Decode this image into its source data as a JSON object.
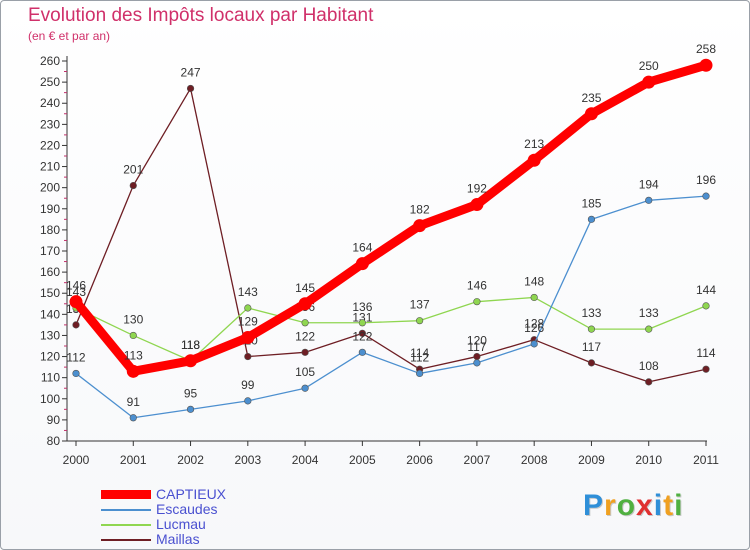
{
  "chart_data": {
    "type": "line",
    "title": "Evolution des Impôts locaux par Habitant",
    "subtitle": "(en € et par an)",
    "x": [
      "2000",
      "2001",
      "2002",
      "2003",
      "2004",
      "2005",
      "2006",
      "2007",
      "2008",
      "2009",
      "2010",
      "2011"
    ],
    "ylim": [
      80,
      260
    ],
    "yticks": [
      80,
      90,
      100,
      110,
      120,
      130,
      140,
      150,
      160,
      170,
      180,
      190,
      200,
      210,
      220,
      230,
      240,
      250,
      260
    ],
    "grid": false,
    "legend_position": "bottom-left",
    "series": [
      {
        "name": "Maillas",
        "color": "#6e1e24",
        "values": [
          135,
          201,
          247,
          120,
          122,
          131,
          114,
          120,
          128,
          117,
          108,
          114
        ]
      },
      {
        "name": "Lucmau",
        "color": "#8fd650",
        "values": [
          143,
          130,
          118,
          143,
          136,
          136,
          137,
          146,
          148,
          133,
          133,
          144
        ]
      },
      {
        "name": "Escaudes",
        "color": "#4c8fcf",
        "values": [
          112,
          91,
          95,
          99,
          105,
          122,
          112,
          117,
          126,
          185,
          194,
          196
        ]
      },
      {
        "name": "CAPTIEUX",
        "color": "#ff0000",
        "values": [
          146,
          113,
          118,
          129,
          145,
          164,
          182,
          192,
          213,
          235,
          250,
          258
        ]
      }
    ]
  },
  "legend": {
    "items": [
      {
        "label": "CAPTIEUX",
        "color": "#ff0000"
      },
      {
        "label": "Escaudes",
        "color": "#4c8fcf"
      },
      {
        "label": "Lucmau",
        "color": "#8fd650"
      },
      {
        "label": "Maillas",
        "color": "#6e1e24"
      }
    ]
  },
  "logo": {
    "letters": [
      "P",
      "r",
      "o",
      "x",
      "i",
      "t",
      "i"
    ],
    "colors": [
      "#2f8fd8",
      "#f0a020",
      "#50b040",
      "#e03030",
      "#2f8fd8",
      "#f0a020",
      "#50b040"
    ]
  }
}
